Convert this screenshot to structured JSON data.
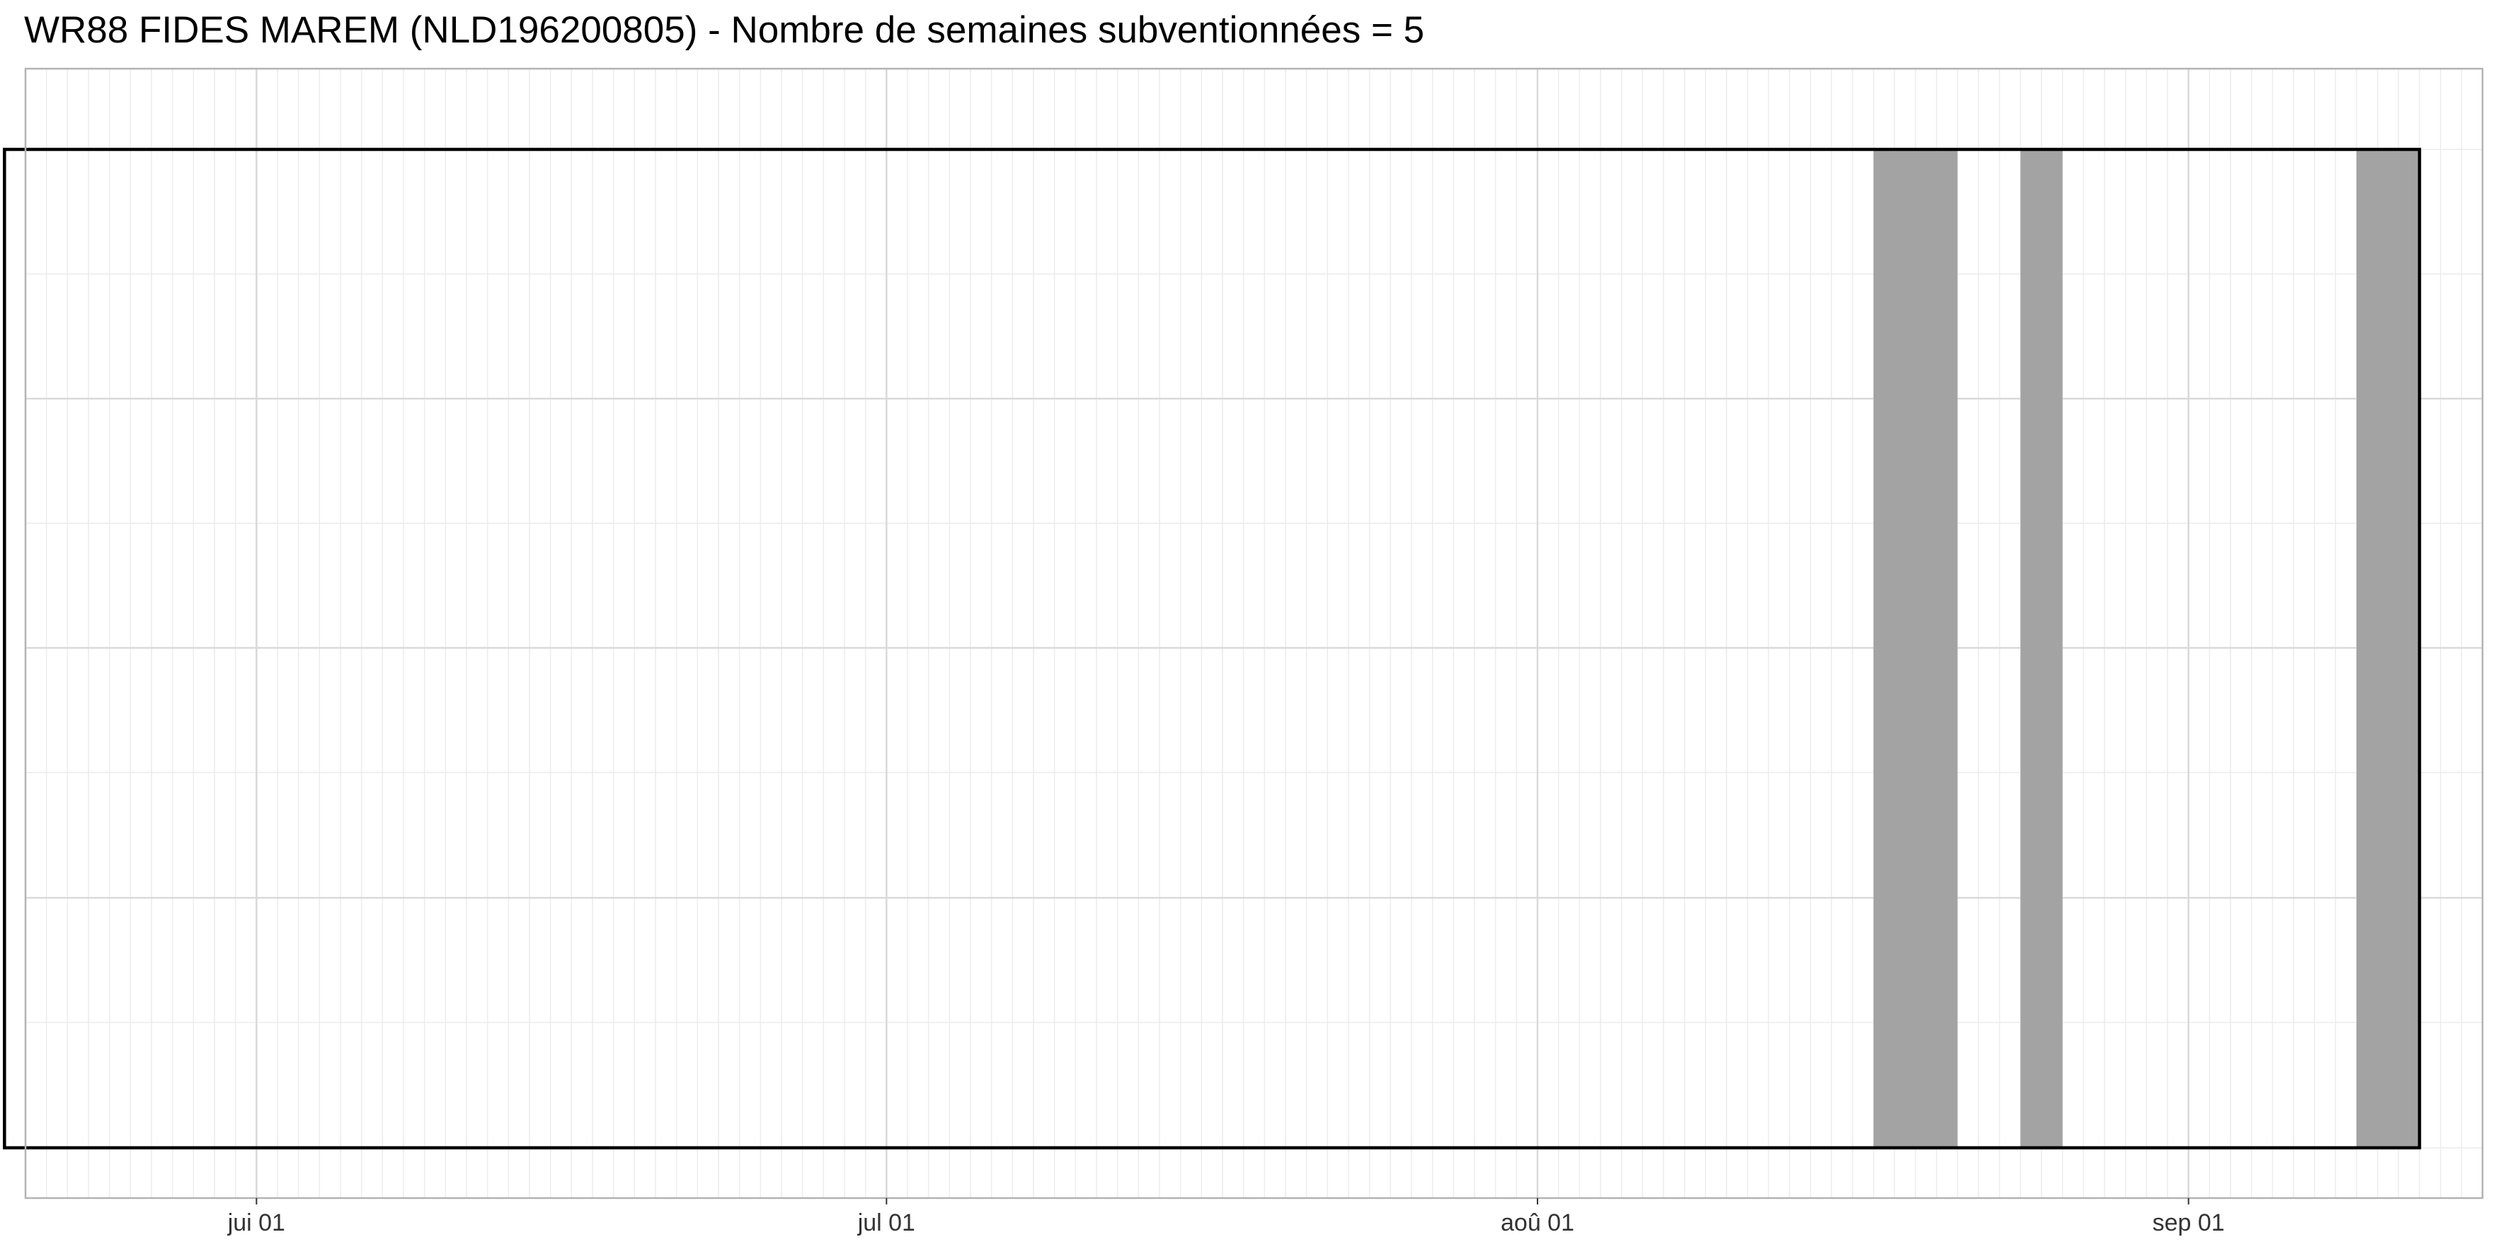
{
  "chart_data": {
    "type": "bar",
    "title": "WR88 FIDES MAREM (NLD196200805) - Nombre de semaines subventionnées = 5",
    "xlabel": "",
    "ylabel": "",
    "x_axis": {
      "kind": "date",
      "range": [
        "2024-05-21",
        "2024-09-15"
      ],
      "ticks": [
        {
          "date": "2024-06-01",
          "label": "jui 01"
        },
        {
          "date": "2024-07-01",
          "label": "jul 01"
        },
        {
          "date": "2024-08-01",
          "label": "aoû 01"
        },
        {
          "date": "2024-09-01",
          "label": "sep 01"
        }
      ],
      "minor_grid": "daily"
    },
    "period": {
      "start": "2024-05-20",
      "end": "2024-09-12"
    },
    "subsidized_intervals": [
      {
        "start": "2024-08-17",
        "end": "2024-08-21"
      },
      {
        "start": "2024-08-24",
        "end": "2024-08-26"
      },
      {
        "start": "2024-09-09",
        "end": "2024-09-12"
      }
    ],
    "colors": {
      "bar": "#a3a3a3",
      "period_outline": "#000000",
      "grid_major": "#d9d9d9",
      "grid_minor": "#ececec",
      "panel_border": "#b3b3b3"
    },
    "grid": true,
    "legend": "none"
  }
}
